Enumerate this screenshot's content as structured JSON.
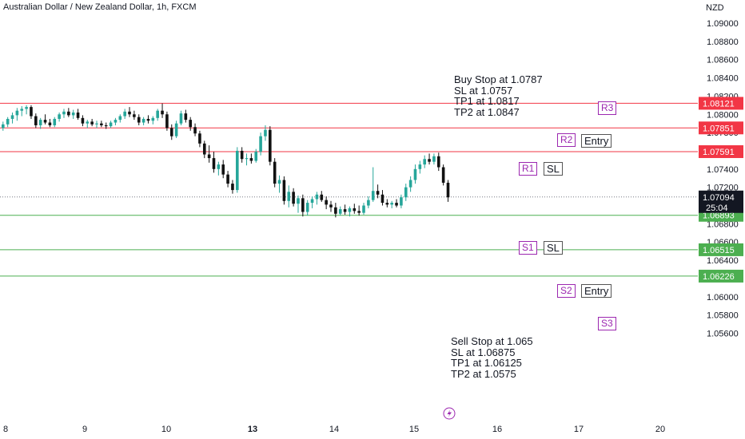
{
  "header": {
    "title": "Australian Dollar / New Zealand Dollar, 1h, FXCM"
  },
  "currency": "NZD",
  "buy_note": [
    "Buy Stop at 1.0787",
    "SL at 1.0757",
    "TP1 at 1.0817",
    "TP2 at 1.0847"
  ],
  "sell_note": [
    "Sell Stop at 1.065",
    "SL at 1.06875",
    "TP1 at 1.06125",
    "TP2 at 1.0575"
  ],
  "tags": {
    "r3": "R3",
    "r2": "R2",
    "r2_note": "Entry",
    "r1": "R1",
    "r1_note": "SL",
    "s1": "S1",
    "s1_note": "SL",
    "s2": "S2",
    "s2_note": "Entry",
    "s3": "S3"
  },
  "colors": {
    "up": "#26a69a",
    "down": "#111111",
    "resistance": "#f23645",
    "support": "#4caf50",
    "tag": "#9c27b0"
  },
  "chart_data": {
    "type": "candlestick",
    "ylim": [
      1.055,
      1.091
    ],
    "y_ticks": [
      1.09,
      1.088,
      1.086,
      1.084,
      1.082,
      1.08,
      1.078,
      1.076,
      1.074,
      1.072,
      1.07,
      1.068,
      1.066,
      1.064,
      1.062,
      1.06,
      1.058,
      1.056
    ],
    "x_ticks": [
      "8",
      "9",
      "10",
      "13",
      "14",
      "15",
      "16",
      "17",
      "20"
    ],
    "current_price": {
      "value": 1.07094,
      "label": "1.07094",
      "countdown": "25:04"
    },
    "levels": [
      {
        "name": "R3",
        "value": 1.08121,
        "label": "1.08121",
        "kind": "resistance"
      },
      {
        "name": "R2",
        "value": 1.07851,
        "label": "1.07851",
        "kind": "resistance"
      },
      {
        "name": "R1",
        "value": 1.07591,
        "label": "1.07591",
        "kind": "resistance"
      },
      {
        "name": "S1",
        "value": 1.06893,
        "label": "1.06893",
        "kind": "support"
      },
      {
        "name": "S2",
        "value": 1.06515,
        "label": "1.06515",
        "kind": "support"
      },
      {
        "name": "S3",
        "value": 1.06226,
        "label": "1.06226",
        "kind": "support"
      }
    ],
    "candles": [
      [
        1.0785,
        1.0792,
        1.0782,
        1.0789
      ],
      [
        1.0789,
        1.0797,
        1.0786,
        1.0795
      ],
      [
        1.0795,
        1.0802,
        1.079,
        1.0799
      ],
      [
        1.0799,
        1.0807,
        1.0793,
        1.0804
      ],
      [
        1.0804,
        1.0809,
        1.0798,
        1.0806
      ],
      [
        1.0806,
        1.081,
        1.08,
        1.0808
      ],
      [
        1.0808,
        1.081,
        1.0795,
        1.0798
      ],
      [
        1.0798,
        1.0801,
        1.0785,
        1.0788
      ],
      [
        1.0788,
        1.0796,
        1.0784,
        1.0794
      ],
      [
        1.0794,
        1.08,
        1.0789,
        1.0791
      ],
      [
        1.0791,
        1.0795,
        1.0786,
        1.0788
      ],
      [
        1.0788,
        1.0797,
        1.0786,
        1.0795
      ],
      [
        1.0795,
        1.0802,
        1.0792,
        1.08
      ],
      [
        1.08,
        1.0806,
        1.0796,
        1.0803
      ],
      [
        1.0803,
        1.0807,
        1.0797,
        1.0799
      ],
      [
        1.0799,
        1.0805,
        1.0795,
        1.0802
      ],
      [
        1.0802,
        1.0806,
        1.0794,
        1.0796
      ],
      [
        1.0796,
        1.0799,
        1.0787,
        1.079
      ],
      [
        1.079,
        1.0794,
        1.0785,
        1.0792
      ],
      [
        1.0792,
        1.0795,
        1.0787,
        1.0789
      ],
      [
        1.0789,
        1.0793,
        1.0785,
        1.079
      ],
      [
        1.079,
        1.0793,
        1.0786,
        1.0788
      ],
      [
        1.0788,
        1.0791,
        1.0784,
        1.0787
      ],
      [
        1.0787,
        1.0793,
        1.0785,
        1.0791
      ],
      [
        1.0791,
        1.0796,
        1.0788,
        1.0794
      ],
      [
        1.0794,
        1.08,
        1.0791,
        1.0798
      ],
      [
        1.0798,
        1.0806,
        1.0795,
        1.0803
      ],
      [
        1.0803,
        1.0808,
        1.0797,
        1.08
      ],
      [
        1.08,
        1.0804,
        1.0794,
        1.0797
      ],
      [
        1.0797,
        1.08,
        1.0788,
        1.0791
      ],
      [
        1.0791,
        1.0797,
        1.0788,
        1.0795
      ],
      [
        1.0795,
        1.0799,
        1.079,
        1.0793
      ],
      [
        1.0793,
        1.0798,
        1.0789,
        1.0796
      ],
      [
        1.0796,
        1.0806,
        1.0793,
        1.0804
      ],
      [
        1.0804,
        1.0812,
        1.0796,
        1.08
      ],
      [
        1.08,
        1.0803,
        1.0782,
        1.0785
      ],
      [
        1.0785,
        1.0789,
        1.0772,
        1.0776
      ],
      [
        1.0776,
        1.0793,
        1.0774,
        1.079
      ],
      [
        1.079,
        1.0804,
        1.0788,
        1.0801
      ],
      [
        1.0801,
        1.0805,
        1.0791,
        1.0794
      ],
      [
        1.0794,
        1.0797,
        1.0782,
        1.0786
      ],
      [
        1.0786,
        1.079,
        1.0776,
        1.0779
      ],
      [
        1.0779,
        1.0782,
        1.0764,
        1.0768
      ],
      [
        1.0768,
        1.0771,
        1.0752,
        1.0756
      ],
      [
        1.0756,
        1.0766,
        1.0747,
        1.0752
      ],
      [
        1.0752,
        1.0759,
        1.0736,
        1.074
      ],
      [
        1.074,
        1.0748,
        1.0733,
        1.0745
      ],
      [
        1.0745,
        1.075,
        1.073,
        1.0734
      ],
      [
        1.0734,
        1.0738,
        1.072,
        1.0724
      ],
      [
        1.0724,
        1.0728,
        1.0713,
        1.0717
      ],
      [
        1.0717,
        1.0764,
        1.0714,
        1.076
      ],
      [
        1.076,
        1.0764,
        1.0747,
        1.0751
      ],
      [
        1.0751,
        1.0757,
        1.0744,
        1.0752
      ],
      [
        1.0752,
        1.0757,
        1.0746,
        1.0749
      ],
      [
        1.0749,
        1.0762,
        1.0747,
        1.0759
      ],
      [
        1.0759,
        1.078,
        1.0755,
        1.0776
      ],
      [
        1.0776,
        1.0788,
        1.0771,
        1.0783
      ],
      [
        1.0783,
        1.0787,
        1.0744,
        1.0748
      ],
      [
        1.0748,
        1.0752,
        1.072,
        1.0724
      ],
      [
        1.0724,
        1.0733,
        1.0714,
        1.0728
      ],
      [
        1.0728,
        1.0732,
        1.0701,
        1.0705
      ],
      [
        1.0705,
        1.0722,
        1.0698,
        1.0715
      ],
      [
        1.0715,
        1.0719,
        1.0699,
        1.0702
      ],
      [
        1.0702,
        1.0711,
        1.0692,
        1.0708
      ],
      [
        1.0708,
        1.0712,
        1.0688,
        1.0693
      ],
      [
        1.0693,
        1.0706,
        1.0689,
        1.0703
      ],
      [
        1.0703,
        1.071,
        1.0697,
        1.0707
      ],
      [
        1.0707,
        1.0715,
        1.0701,
        1.0712
      ],
      [
        1.0712,
        1.0716,
        1.0704,
        1.0706
      ],
      [
        1.0706,
        1.071,
        1.0696,
        1.0701
      ],
      [
        1.0701,
        1.0705,
        1.0693,
        1.0698
      ],
      [
        1.0698,
        1.0703,
        1.0687,
        1.0691
      ],
      [
        1.0691,
        1.0699,
        1.0689,
        1.0696
      ],
      [
        1.0696,
        1.0701,
        1.069,
        1.0693
      ],
      [
        1.0693,
        1.0699,
        1.0688,
        1.0697
      ],
      [
        1.0697,
        1.0702,
        1.0691,
        1.0694
      ],
      [
        1.0694,
        1.07,
        1.0689,
        1.0692
      ],
      [
        1.0692,
        1.0703,
        1.069,
        1.07
      ],
      [
        1.07,
        1.071,
        1.0697,
        1.0706
      ],
      [
        1.0706,
        1.0742,
        1.0704,
        1.0716
      ],
      [
        1.0716,
        1.0723,
        1.0708,
        1.0712
      ],
      [
        1.0712,
        1.0717,
        1.07,
        1.0703
      ],
      [
        1.0703,
        1.0707,
        1.0698,
        1.0701
      ],
      [
        1.0701,
        1.0705,
        1.0697,
        1.0703
      ],
      [
        1.0703,
        1.0707,
        1.0698,
        1.07
      ],
      [
        1.07,
        1.0712,
        1.0697,
        1.0709
      ],
      [
        1.0709,
        1.0724,
        1.0705,
        1.072
      ],
      [
        1.072,
        1.0732,
        1.0715,
        1.0728
      ],
      [
        1.0728,
        1.0745,
        1.0724,
        1.074
      ],
      [
        1.074,
        1.0749,
        1.0735,
        1.0745
      ],
      [
        1.0745,
        1.0755,
        1.0741,
        1.0751
      ],
      [
        1.0751,
        1.0757,
        1.0745,
        1.0748
      ],
      [
        1.0748,
        1.0757,
        1.0745,
        1.0754
      ],
      [
        1.0754,
        1.0758,
        1.0738,
        1.0742
      ],
      [
        1.0742,
        1.0745,
        1.0722,
        1.0725
      ],
      [
        1.0725,
        1.0728,
        1.0704,
        1.0709
      ]
    ]
  }
}
